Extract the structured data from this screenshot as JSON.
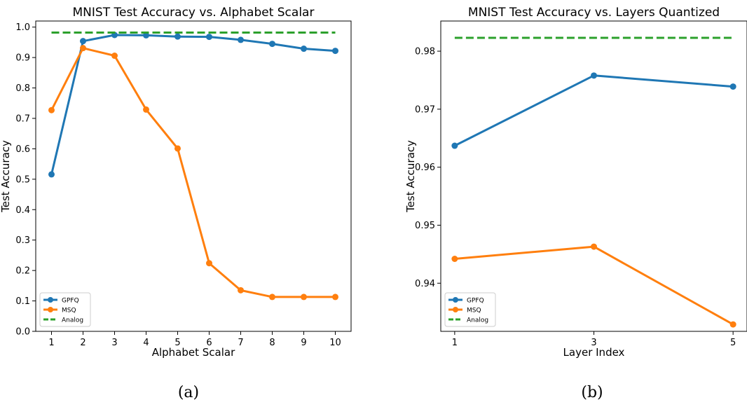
{
  "captions": [
    "(a)",
    "(b)"
  ],
  "colors": {
    "GPFQ": "#1f77b4",
    "MSQ": "#ff7f0e",
    "Analog": "#2ca02c"
  },
  "chart_data": [
    {
      "type": "line",
      "title": "MNIST Test Accuracy vs. Alphabet Scalar",
      "xlabel": "Alphabet Scalar",
      "ylabel": "Test Accuracy",
      "x": [
        1,
        2,
        3,
        4,
        5,
        6,
        7,
        8,
        9,
        10
      ],
      "xticks": [
        "1",
        "2",
        "3",
        "4",
        "5",
        "6",
        "7",
        "8",
        "9",
        "10"
      ],
      "yticks": [
        "0.0",
        "0.1",
        "0.2",
        "0.3",
        "0.4",
        "0.5",
        "0.6",
        "0.7",
        "0.8",
        "0.9",
        "1.0"
      ],
      "xlim": [
        0.5,
        10.5
      ],
      "ylim": [
        0.0,
        1.02
      ],
      "legend": "lower-left",
      "grid": false,
      "series": [
        {
          "name": "GPFQ",
          "style": "solid-marker",
          "values": [
            0.516,
            0.954,
            0.974,
            0.973,
            0.969,
            0.968,
            0.958,
            0.945,
            0.929,
            0.922
          ]
        },
        {
          "name": "MSQ",
          "style": "solid-marker",
          "values": [
            0.727,
            0.931,
            0.906,
            0.729,
            0.601,
            0.224,
            0.135,
            0.113,
            0.113,
            0.113
          ]
        },
        {
          "name": "Analog",
          "style": "dashed",
          "values": [
            0.982,
            0.982,
            0.982,
            0.982,
            0.982,
            0.982,
            0.982,
            0.982,
            0.982,
            0.982
          ]
        }
      ]
    },
    {
      "type": "line",
      "title": "MNIST Test Accuracy vs. Layers Quantized",
      "xlabel": "Layer Index",
      "ylabel": "Test Accuracy",
      "x": [
        1,
        3,
        5
      ],
      "xticks": [
        "1",
        "3",
        "5"
      ],
      "yticks": [
        "0.94",
        "0.95",
        "0.96",
        "0.97",
        "0.98"
      ],
      "xlim": [
        0.8,
        5.2
      ],
      "ylim": [
        0.9317,
        0.9852
      ],
      "legend": "lower-left",
      "grid": false,
      "series": [
        {
          "name": "GPFQ",
          "style": "solid-marker",
          "values": [
            0.9637,
            0.9758,
            0.9739
          ]
        },
        {
          "name": "MSQ",
          "style": "solid-marker",
          "values": [
            0.9442,
            0.9463,
            0.9329
          ]
        },
        {
          "name": "Analog",
          "style": "dashed",
          "values": [
            0.9823,
            0.9823,
            0.9823
          ]
        }
      ]
    }
  ]
}
